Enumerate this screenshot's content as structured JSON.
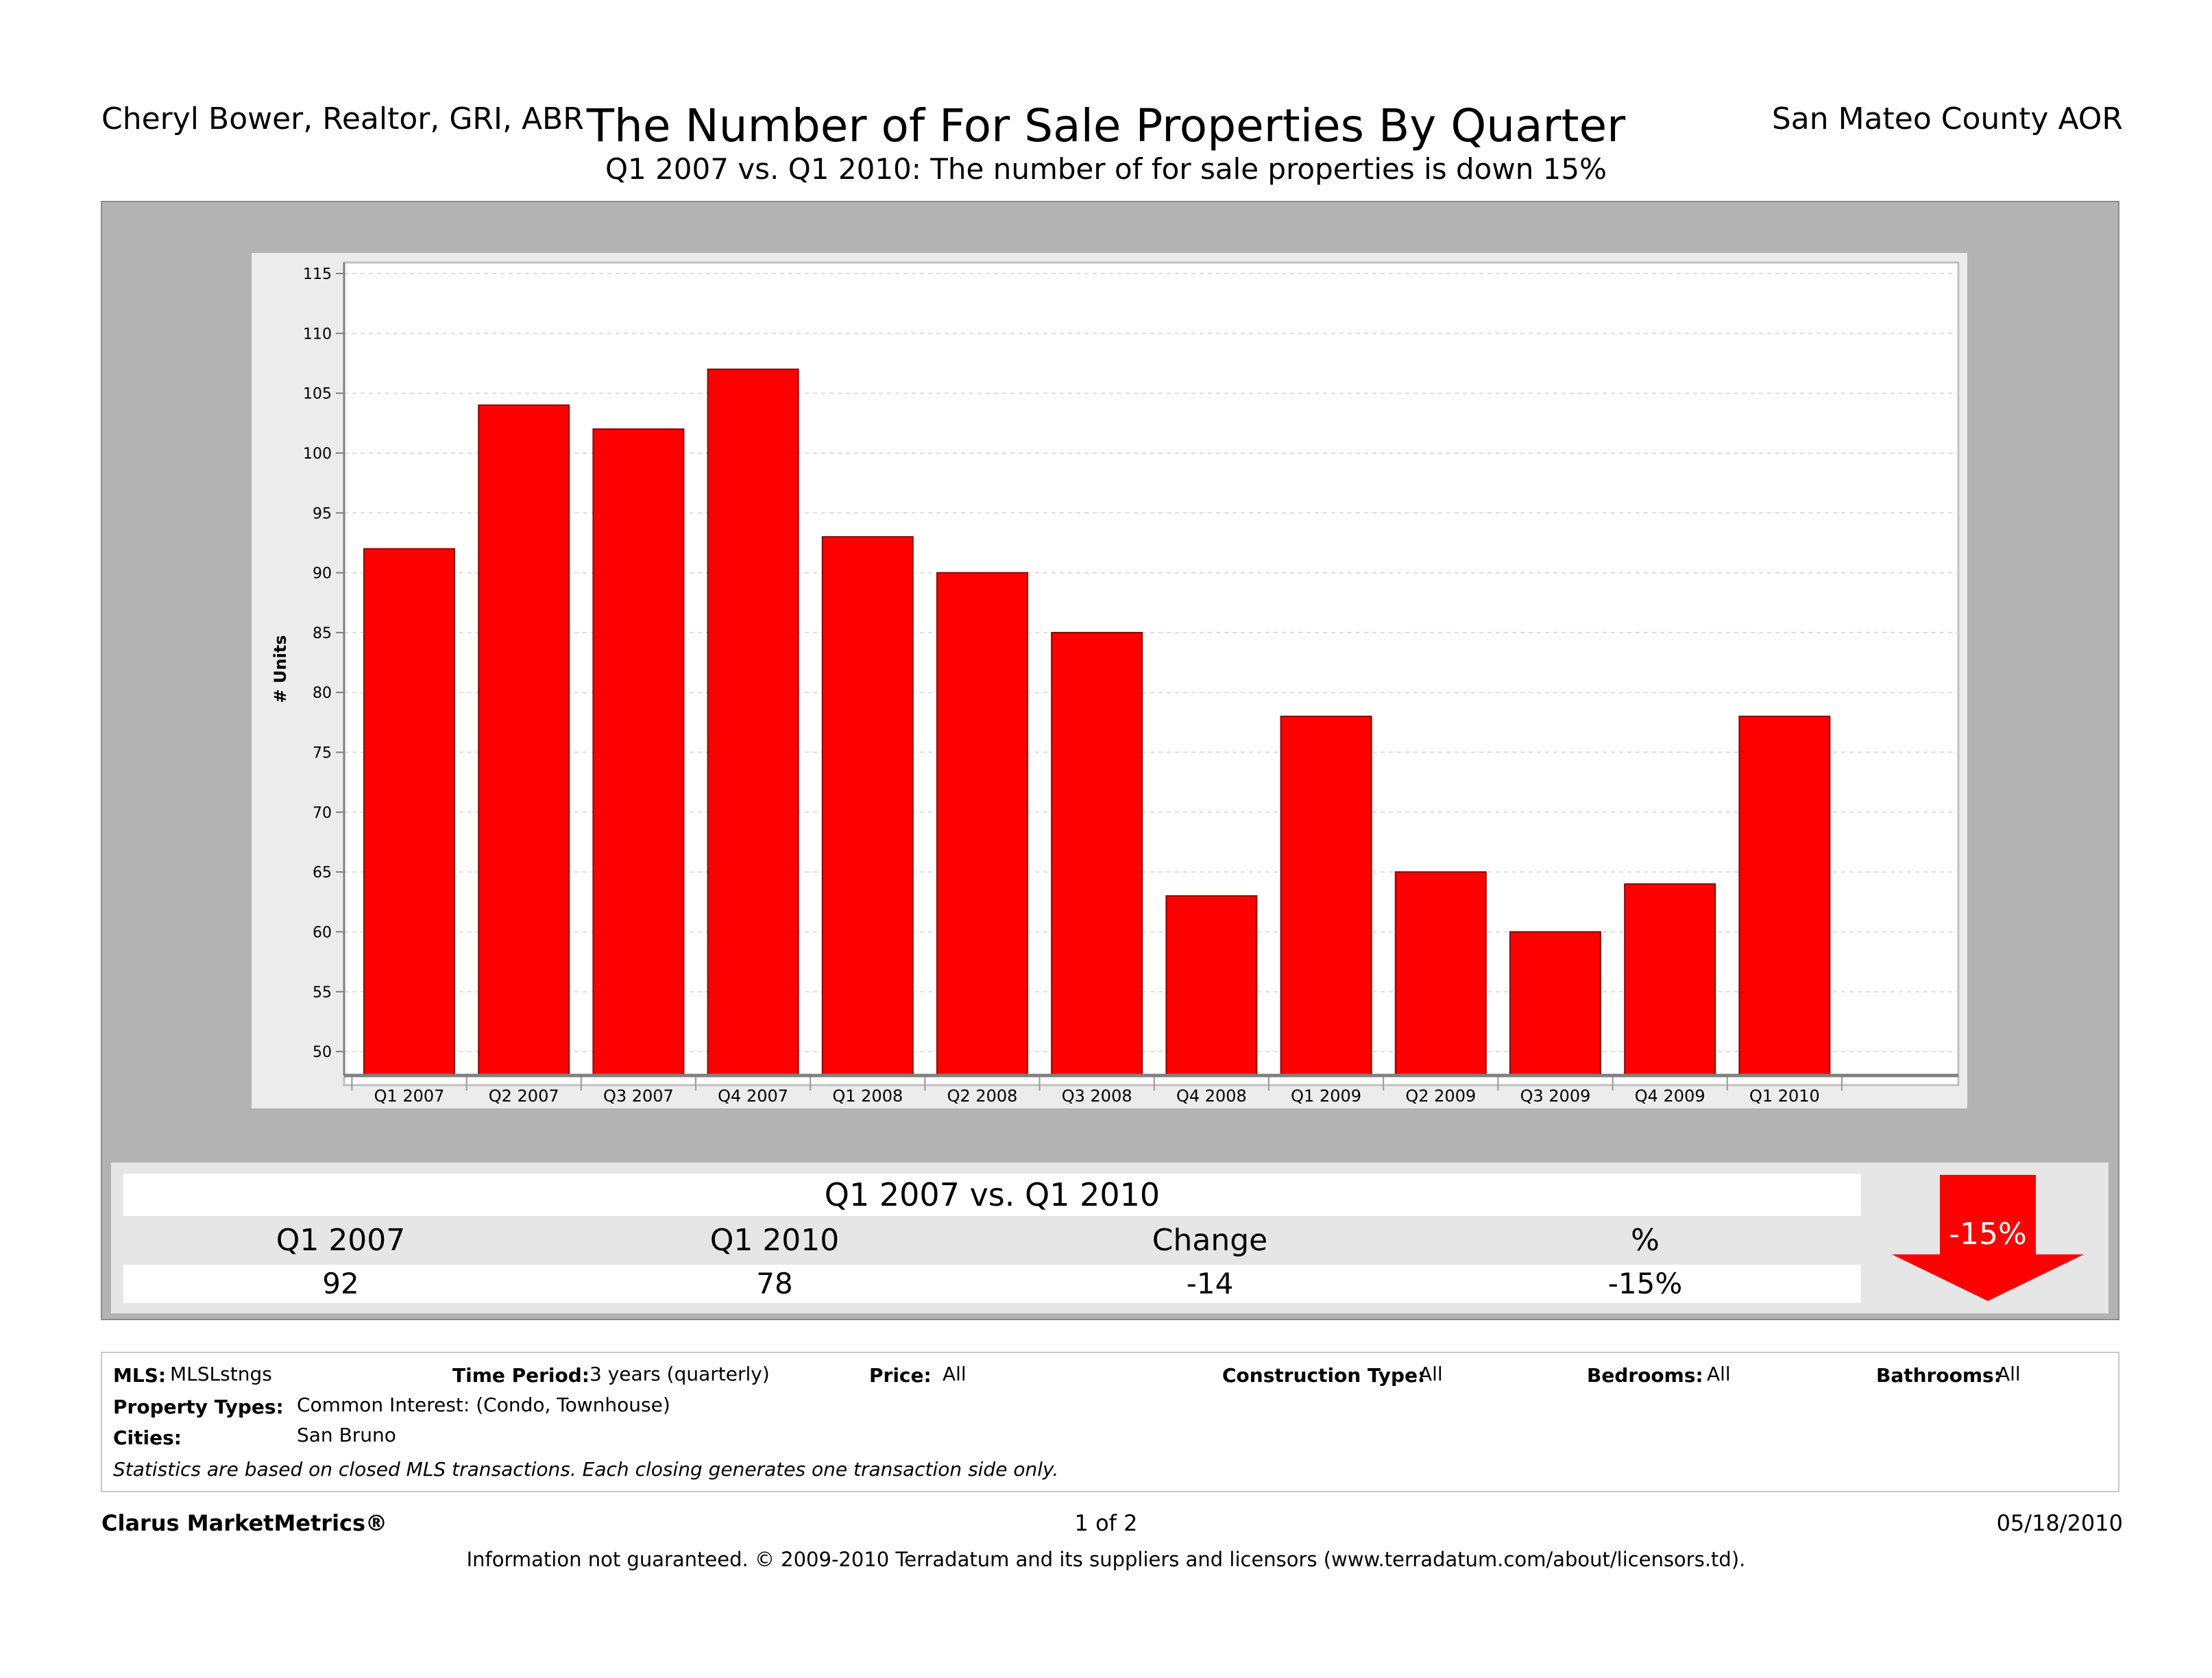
{
  "header": {
    "agent": "Cheryl Bower, Realtor, GRI, ABR",
    "title": "The Number of For Sale Properties By Quarter",
    "subtitle": "Q1 2007 vs. Q1 2010:  The number of for sale properties is down 15%",
    "org": "San Mateo County AOR"
  },
  "chart_data": {
    "type": "bar",
    "title": "The Number of For Sale Properties By Quarter",
    "ylabel": "# Units",
    "xlabel": "",
    "categories": [
      "Q1 2007",
      "Q2 2007",
      "Q3 2007",
      "Q4 2007",
      "Q1 2008",
      "Q2 2008",
      "Q3 2008",
      "Q4 2008",
      "Q1 2009",
      "Q2 2009",
      "Q3 2009",
      "Q4 2009",
      "Q1 2010"
    ],
    "values": [
      92,
      104,
      102,
      107,
      93,
      90,
      85,
      63,
      78,
      65,
      60,
      64,
      78
    ],
    "ylim": [
      48,
      115
    ],
    "yticks": [
      50,
      55,
      60,
      65,
      70,
      75,
      80,
      85,
      90,
      95,
      100,
      105,
      110,
      115
    ],
    "grid": true,
    "bar_color": "#ff0000"
  },
  "summary": {
    "title": "Q1 2007 vs. Q1 2010",
    "headers": [
      "Q1 2007",
      "Q1 2010",
      "Change",
      "%"
    ],
    "values": [
      "92",
      "78",
      "-14",
      "-15%"
    ],
    "badge": "-15%",
    "badge_color": "#ff0000"
  },
  "info": {
    "mls_label": "MLS:",
    "mls_value": "MLSLstngs",
    "period_label": "Time Period:",
    "period_value": "3 years (quarterly)",
    "price_label": "Price:",
    "price_value": "All",
    "construction_label": "Construction Type:",
    "construction_value": "All",
    "bedrooms_label": "Bedrooms:",
    "bedrooms_value": "All",
    "bathrooms_label": "Bathrooms:",
    "bathrooms_value": "All",
    "property_label": "Property Types:",
    "property_value": "Common Interest: (Condo, Townhouse)",
    "cities_label": "Cities:",
    "cities_value": "San Bruno",
    "note": "Statistics are based on closed MLS transactions.  Each closing generates one transaction side only."
  },
  "footer": {
    "brand": "Clarus MarketMetrics®",
    "page": "1 of 2",
    "date": "05/18/2010",
    "disclaimer": "Information not guaranteed.  © 2009-2010 Terradatum and its suppliers and licensors (www.terradatum.com/about/licensors.td)."
  }
}
